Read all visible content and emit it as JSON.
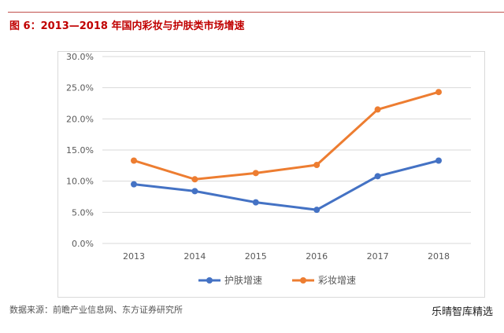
{
  "title": "图 6：2013—2018 年国内彩妆与护肤类市场增速",
  "source": "数据来源：前瞻产业信息网、东方证券研究所",
  "watermark": "乐晴智库精选",
  "chart_data": {
    "type": "line",
    "categories": [
      "2013",
      "2014",
      "2015",
      "2016",
      "2017",
      "2018"
    ],
    "series": [
      {
        "name": "护肤增速",
        "color": "#4472c4",
        "values": [
          9.5,
          8.4,
          6.6,
          5.4,
          10.8,
          13.3
        ]
      },
      {
        "name": "彩妆增速",
        "color": "#ed7d31",
        "values": [
          13.3,
          10.3,
          11.3,
          12.6,
          21.5,
          24.3
        ]
      }
    ],
    "ylim": [
      0,
      30
    ],
    "yticks": [
      "0.0%",
      "5.0%",
      "10.0%",
      "15.0%",
      "20.0%",
      "25.0%",
      "30.0%"
    ],
    "grid": true,
    "legend": "bottom"
  }
}
